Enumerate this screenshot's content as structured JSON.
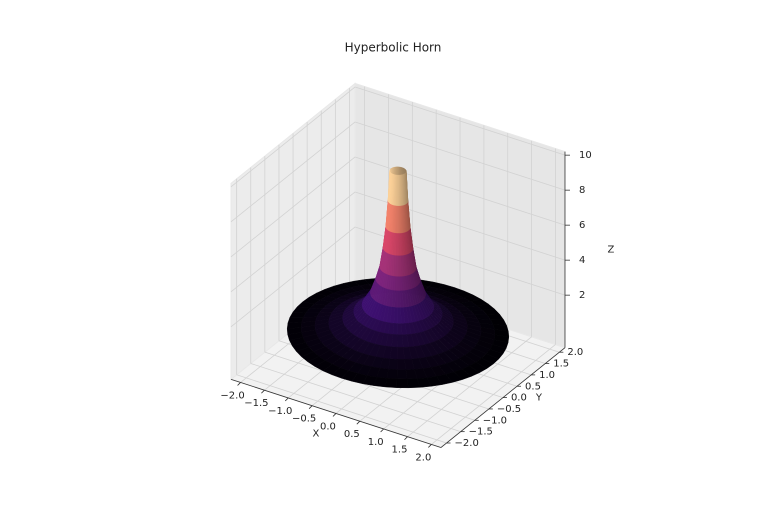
{
  "chart_data": {
    "type": "surface",
    "title": "Hyperbolic Horn",
    "xlabel": "X",
    "ylabel": "Y",
    "zlabel": "Z",
    "r": [
      0.15,
      0.18,
      0.22,
      0.27,
      0.33,
      0.4,
      0.5,
      0.65,
      0.8,
      1.0,
      1.25,
      1.5,
      1.75,
      2.0
    ],
    "z": [
      10,
      8.3,
      6.8,
      5.6,
      4.5,
      3.8,
      3,
      2.3,
      1.9,
      1.5,
      1.2,
      1.0,
      0.86,
      0.75
    ],
    "colormap": [
      "#000004",
      "#3b0f70",
      "#8c2981",
      "#de4968",
      "#fe9f6d",
      "#fcfdbf"
    ],
    "xlim": [
      -2.2,
      2.2
    ],
    "ylim": [
      -2.2,
      2.2
    ],
    "zlim": [
      -1,
      10.2
    ],
    "xticks": [
      {
        "value": -2,
        "label": "−2.0"
      },
      {
        "value": -1.5,
        "label": "−1.5"
      },
      {
        "value": -1,
        "label": "−1.0"
      },
      {
        "value": -0.5,
        "label": "−0.5"
      },
      {
        "value": 0,
        "label": "0.0"
      },
      0.5,
      {
        "value": 1,
        "label": "1.0"
      },
      1.5,
      {
        "value": 2,
        "label": "2.0"
      }
    ],
    "yticks": [
      {
        "value": -2,
        "label": "−2.0"
      },
      {
        "value": -1.5,
        "label": "−1.5"
      },
      {
        "value": -1,
        "label": "−1.0"
      },
      {
        "value": -0.5,
        "label": "−0.5"
      },
      {
        "value": 0,
        "label": "0.0"
      },
      0.5,
      {
        "value": 1,
        "label": "1.0"
      },
      1.5,
      {
        "value": 2,
        "label": "2.0"
      }
    ],
    "zticks": [
      2,
      4,
      6,
      8,
      10
    ],
    "grid": true
  }
}
